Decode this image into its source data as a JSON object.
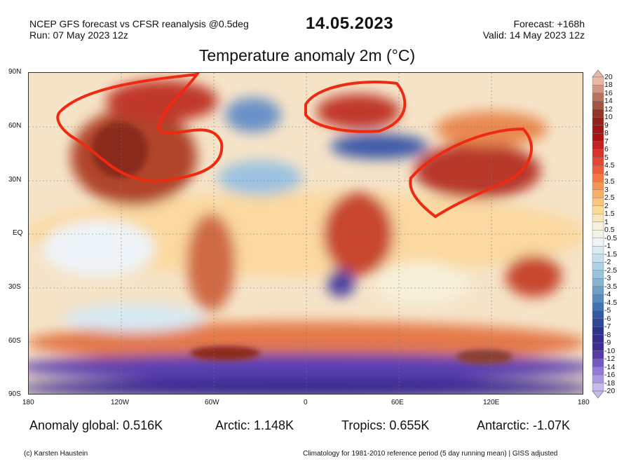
{
  "header": {
    "source": "NCEP GFS forecast vs CFSR reanalysis @0.5deg",
    "run": "Run: 07 May 2023 12z",
    "date": "14.05.2023",
    "forecast": "Forecast: +168h",
    "valid": "Valid: 14 May 2023 12z",
    "title": "Temperature anomaly 2m (°C)"
  },
  "axes": {
    "lat_labels": [
      "90N",
      "60N",
      "30N",
      "EQ",
      "30S",
      "60S",
      "90S"
    ],
    "lon_labels": [
      "180",
      "120W",
      "60W",
      "0",
      "60E",
      "120E",
      "180"
    ]
  },
  "colorbar": {
    "labels": [
      "20",
      "18",
      "16",
      "14",
      "12",
      "10",
      "9",
      "8",
      "7",
      "6",
      "5",
      "4.5",
      "4",
      "3.5",
      "3",
      "2.5",
      "2",
      "1.5",
      "1",
      "0.5",
      "-0.5",
      "-1",
      "-1.5",
      "-2",
      "-2.5",
      "-3",
      "-3.5",
      "-4",
      "-4.5",
      "-5",
      "-6",
      "-7",
      "-8",
      "-9",
      "-10",
      "-12",
      "-14",
      "-16",
      "-18",
      "-20"
    ],
    "color_stops": [
      "#e9b9a6",
      "#b56a55",
      "#8a2a1c",
      "#a80d12",
      "#d5322a",
      "#f0603a",
      "#f9a058",
      "#fcd68a",
      "#f7f0d8",
      "#eef4f8",
      "#bddcec",
      "#8ebbd8",
      "#5a8fc0",
      "#2f5aa6",
      "#2a2f8a",
      "#4b2a9a",
      "#8d70d8",
      "#c8b8f0"
    ]
  },
  "stats": {
    "global": "Anomaly global: 0.516K",
    "arctic": "Arctic: 1.148K",
    "tropics": "Tropics: 0.655K",
    "antarctic": "Antarctic: -1.07K"
  },
  "footer": {
    "credit": "(c) Karsten Haustein",
    "note": "Climatology for 1981-2010 reference period (5 day running mean) | GISS adjusted"
  }
}
